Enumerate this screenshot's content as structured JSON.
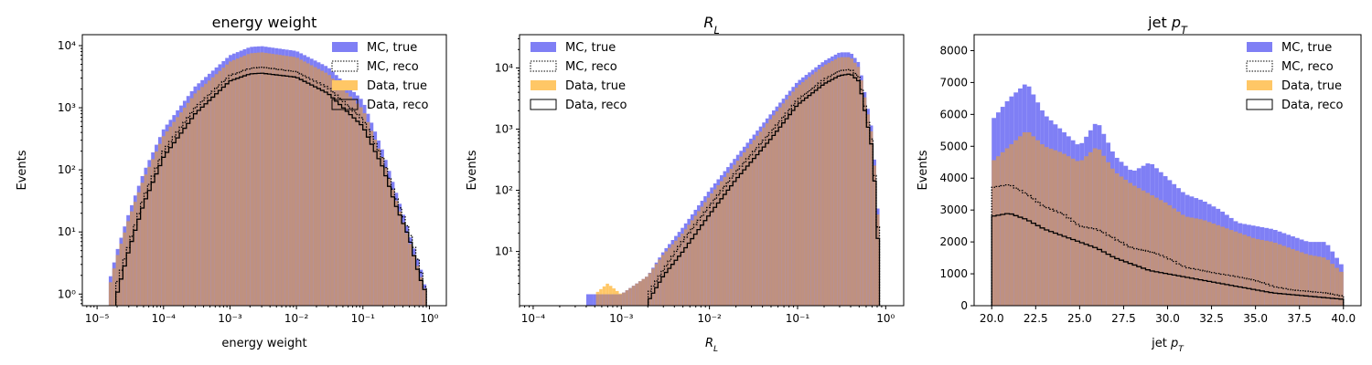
{
  "colors": {
    "mc_true": "#7f7ff5",
    "data_true": "#ffc766",
    "overlap": "#bf9180",
    "reco_line": "#000000"
  },
  "legend_labels": [
    "MC, true",
    "MC, reco",
    "Data, true",
    "Data, reco"
  ],
  "chart_data": [
    {
      "type": "histogram",
      "title": "energy weight",
      "xlabel": "energy weight",
      "ylabel": "Events",
      "xscale": "log",
      "yscale": "log",
      "xlim": [
        6e-06,
        1.8
      ],
      "ylim": [
        0.65,
        15000
      ],
      "xticks": [
        {
          "v": 1e-05,
          "label": "10⁻⁵"
        },
        {
          "v": 0.0001,
          "label": "10⁻⁴"
        },
        {
          "v": 0.001,
          "label": "10⁻³"
        },
        {
          "v": 0.01,
          "label": "10⁻²"
        },
        {
          "v": 0.1,
          "label": "10⁻¹"
        },
        {
          "v": 1,
          "label": "10⁰"
        }
      ],
      "yticks": [
        {
          "v": 1,
          "label": "10⁰"
        },
        {
          "v": 10,
          "label": "10¹"
        },
        {
          "v": 100,
          "label": "10²"
        },
        {
          "v": 1000,
          "label": "10³"
        },
        {
          "v": 10000,
          "label": "10⁴"
        }
      ],
      "legend_position": "top-right",
      "series": [
        {
          "name": "MC, true",
          "style": "filled",
          "points": [
            [
              1.5e-05,
              1.5
            ],
            [
              2e-05,
              5
            ],
            [
              3e-05,
              20
            ],
            [
              5e-05,
              90
            ],
            [
              0.0001,
              450
            ],
            [
              0.0003,
              2200
            ],
            [
              0.001,
              7000
            ],
            [
              0.002,
              9500
            ],
            [
              0.003,
              9800
            ],
            [
              0.01,
              8200
            ],
            [
              0.03,
              4500
            ],
            [
              0.1,
              1300
            ],
            [
              0.2,
              200
            ],
            [
              0.4,
              20
            ],
            [
              0.6,
              5
            ],
            [
              0.8,
              2
            ],
            [
              0.9,
              1
            ]
          ]
        },
        {
          "name": "Data, true",
          "style": "filled",
          "points": [
            [
              1.5e-05,
              1.2
            ],
            [
              2e-05,
              4
            ],
            [
              3e-05,
              16
            ],
            [
              5e-05,
              70
            ],
            [
              0.0001,
              350
            ],
            [
              0.0003,
              1700
            ],
            [
              0.001,
              5500
            ],
            [
              0.002,
              7500
            ],
            [
              0.003,
              7800
            ],
            [
              0.01,
              6500
            ],
            [
              0.03,
              3500
            ],
            [
              0.1,
              950
            ],
            [
              0.2,
              150
            ],
            [
              0.4,
              15
            ],
            [
              0.6,
              4
            ],
            [
              0.8,
              1.5
            ],
            [
              0.9,
              1
            ]
          ]
        },
        {
          "name": "MC, reco",
          "style": "dotted",
          "points": [
            [
              2e-05,
              1.5
            ],
            [
              3e-05,
              6
            ],
            [
              5e-05,
              35
            ],
            [
              0.0001,
              200
            ],
            [
              0.0003,
              1000
            ],
            [
              0.001,
              3300
            ],
            [
              0.002,
              4300
            ],
            [
              0.003,
              4500
            ],
            [
              0.01,
              3800
            ],
            [
              0.03,
              2100
            ],
            [
              0.1,
              650
            ],
            [
              0.2,
              150
            ],
            [
              0.3,
              40
            ],
            [
              0.5,
              10
            ],
            [
              0.7,
              3
            ],
            [
              0.9,
              1
            ]
          ]
        },
        {
          "name": "Data, reco",
          "style": "solid",
          "points": [
            [
              2e-05,
              1
            ],
            [
              3e-05,
              5
            ],
            [
              5e-05,
              28
            ],
            [
              0.0001,
              160
            ],
            [
              0.0003,
              800
            ],
            [
              0.001,
              2700
            ],
            [
              0.002,
              3500
            ],
            [
              0.003,
              3600
            ],
            [
              0.01,
              3100
            ],
            [
              0.03,
              1700
            ],
            [
              0.1,
              500
            ],
            [
              0.2,
              110
            ],
            [
              0.3,
              30
            ],
            [
              0.5,
              8
            ],
            [
              0.7,
              2
            ],
            [
              0.9,
              1
            ]
          ]
        }
      ]
    },
    {
      "type": "histogram",
      "title": "R_L",
      "xlabel": "R_L",
      "ylabel": "Events",
      "xscale": "log",
      "yscale": "log",
      "xlim": [
        7e-05,
        1.6
      ],
      "ylim": [
        1.3,
        35000
      ],
      "xticks": [
        {
          "v": 0.0001,
          "label": "10⁻⁴"
        },
        {
          "v": 0.001,
          "label": "10⁻³"
        },
        {
          "v": 0.01,
          "label": "10⁻²"
        },
        {
          "v": 0.1,
          "label": "10⁻¹"
        },
        {
          "v": 1,
          "label": "10⁰"
        }
      ],
      "yticks": [
        {
          "v": 10,
          "label": "10¹"
        },
        {
          "v": 100,
          "label": "10²"
        },
        {
          "v": 1000,
          "label": "10³"
        },
        {
          "v": 10000,
          "label": "10⁴"
        }
      ],
      "legend_position": "top-left",
      "series": [
        {
          "name": "MC, true",
          "style": "filled",
          "points": [
            [
              0.0004,
              2
            ],
            [
              0.0008,
              2
            ],
            [
              0.001,
              2
            ],
            [
              0.002,
              4
            ],
            [
              0.003,
              10
            ],
            [
              0.005,
              25
            ],
            [
              0.01,
              100
            ],
            [
              0.02,
              350
            ],
            [
              0.05,
              1800
            ],
            [
              0.1,
              6000
            ],
            [
              0.2,
              13000
            ],
            [
              0.3,
              18000
            ],
            [
              0.4,
              18000
            ],
            [
              0.5,
              12000
            ],
            [
              0.7,
              1000
            ],
            [
              0.8,
              100
            ],
            [
              0.85,
              10
            ]
          ]
        },
        {
          "name": "Data, true",
          "style": "filled",
          "points": [
            [
              0.0005,
              2
            ],
            [
              0.0007,
              3
            ],
            [
              0.001,
              2
            ],
            [
              0.0015,
              3
            ],
            [
              0.002,
              4
            ],
            [
              0.003,
              9
            ],
            [
              0.005,
              20
            ],
            [
              0.01,
              80
            ],
            [
              0.02,
              280
            ],
            [
              0.05,
              1500
            ],
            [
              0.1,
              5000
            ],
            [
              0.2,
              11000
            ],
            [
              0.3,
              15000
            ],
            [
              0.4,
              15000
            ],
            [
              0.5,
              10000
            ],
            [
              0.7,
              800
            ],
            [
              0.8,
              80
            ],
            [
              0.85,
              8
            ]
          ]
        },
        {
          "name": "MC, reco",
          "style": "dotted",
          "points": [
            [
              0.002,
              2
            ],
            [
              0.003,
              5
            ],
            [
              0.005,
              15
            ],
            [
              0.01,
              55
            ],
            [
              0.02,
              200
            ],
            [
              0.05,
              900
            ],
            [
              0.1,
              3000
            ],
            [
              0.2,
              6500
            ],
            [
              0.3,
              9000
            ],
            [
              0.4,
              9500
            ],
            [
              0.5,
              7000
            ],
            [
              0.7,
              600
            ],
            [
              0.8,
              50
            ],
            [
              0.85,
              5
            ]
          ]
        },
        {
          "name": "Data, reco",
          "style": "solid",
          "points": [
            [
              0.002,
              1.5
            ],
            [
              0.003,
              4
            ],
            [
              0.005,
              10
            ],
            [
              0.01,
              40
            ],
            [
              0.02,
              150
            ],
            [
              0.05,
              700
            ],
            [
              0.1,
              2500
            ],
            [
              0.2,
              5500
            ],
            [
              0.3,
              7500
            ],
            [
              0.4,
              8000
            ],
            [
              0.5,
              6000
            ],
            [
              0.7,
              500
            ],
            [
              0.8,
              40
            ],
            [
              0.85,
              2
            ]
          ]
        }
      ]
    },
    {
      "type": "histogram",
      "title": "jet p_T",
      "xlabel": "jet p_T",
      "ylabel": "Events",
      "xscale": "linear",
      "yscale": "linear",
      "xlim": [
        19,
        41
      ],
      "ylim": [
        0,
        8500
      ],
      "xticks": [
        {
          "v": 20,
          "label": "20.0"
        },
        {
          "v": 22.5,
          "label": "22.5"
        },
        {
          "v": 25,
          "label": "25.0"
        },
        {
          "v": 27.5,
          "label": "27.5"
        },
        {
          "v": 30,
          "label": "30.0"
        },
        {
          "v": 32.5,
          "label": "32.5"
        },
        {
          "v": 35,
          "label": "35.0"
        },
        {
          "v": 37.5,
          "label": "37.5"
        },
        {
          "v": 40,
          "label": "40.0"
        }
      ],
      "yticks": [
        {
          "v": 0,
          "label": "0"
        },
        {
          "v": 1000,
          "label": "1000"
        },
        {
          "v": 2000,
          "label": "2000"
        },
        {
          "v": 3000,
          "label": "3000"
        },
        {
          "v": 4000,
          "label": "4000"
        },
        {
          "v": 5000,
          "label": "5000"
        },
        {
          "v": 6000,
          "label": "6000"
        },
        {
          "v": 7000,
          "label": "7000"
        },
        {
          "v": 8000,
          "label": "8000"
        }
      ],
      "legend_position": "top-right",
      "series": [
        {
          "name": "MC, true",
          "style": "filled",
          "points": [
            [
              20,
              5800
            ],
            [
              21,
              6500
            ],
            [
              22,
              7000
            ],
            [
              23,
              6000
            ],
            [
              24,
              5500
            ],
            [
              25,
              5000
            ],
            [
              26,
              5800
            ],
            [
              27,
              4700
            ],
            [
              28,
              4200
            ],
            [
              29,
              4500
            ],
            [
              30,
              4000
            ],
            [
              31,
              3500
            ],
            [
              32,
              3300
            ],
            [
              33,
              3000
            ],
            [
              34,
              2600
            ],
            [
              35,
              2500
            ],
            [
              36,
              2400
            ],
            [
              37,
              2200
            ],
            [
              38,
              2000
            ],
            [
              39,
              2000
            ],
            [
              40,
              1200
            ]
          ]
        },
        {
          "name": "Data, true",
          "style": "filled",
          "points": [
            [
              20,
              4500
            ],
            [
              21,
              5000
            ],
            [
              22,
              5500
            ],
            [
              23,
              5000
            ],
            [
              24,
              4800
            ],
            [
              25,
              4500
            ],
            [
              26,
              5000
            ],
            [
              27,
              4200
            ],
            [
              28,
              3800
            ],
            [
              29,
              3500
            ],
            [
              30,
              3200
            ],
            [
              31,
              2800
            ],
            [
              32,
              2700
            ],
            [
              33,
              2500
            ],
            [
              34,
              2300
            ],
            [
              35,
              2100
            ],
            [
              36,
              2000
            ],
            [
              37,
              1800
            ],
            [
              38,
              1600
            ],
            [
              39,
              1500
            ],
            [
              40,
              1000
            ]
          ]
        },
        {
          "name": "MC, reco",
          "style": "dotted",
          "points": [
            [
              20,
              3700
            ],
            [
              21,
              3800
            ],
            [
              22,
              3500
            ],
            [
              23,
              3100
            ],
            [
              24,
              2900
            ],
            [
              25,
              2500
            ],
            [
              26,
              2400
            ],
            [
              27,
              2100
            ],
            [
              28,
              1800
            ],
            [
              29,
              1700
            ],
            [
              30,
              1500
            ],
            [
              31,
              1200
            ],
            [
              32,
              1100
            ],
            [
              33,
              1000
            ],
            [
              34,
              900
            ],
            [
              35,
              800
            ],
            [
              36,
              600
            ],
            [
              37,
              500
            ],
            [
              38,
              450
            ],
            [
              39,
              400
            ],
            [
              40,
              300
            ]
          ]
        },
        {
          "name": "Data, reco",
          "style": "solid",
          "points": [
            [
              20,
              2800
            ],
            [
              21,
              2900
            ],
            [
              22,
              2700
            ],
            [
              23,
              2400
            ],
            [
              24,
              2200
            ],
            [
              25,
              2000
            ],
            [
              26,
              1800
            ],
            [
              27,
              1500
            ],
            [
              28,
              1300
            ],
            [
              29,
              1100
            ],
            [
              30,
              1000
            ],
            [
              31,
              900
            ],
            [
              32,
              800
            ],
            [
              33,
              700
            ],
            [
              34,
              600
            ],
            [
              35,
              500
            ],
            [
              36,
              400
            ],
            [
              37,
              350
            ],
            [
              38,
              300
            ],
            [
              39,
              250
            ],
            [
              40,
              200
            ]
          ]
        }
      ]
    }
  ]
}
